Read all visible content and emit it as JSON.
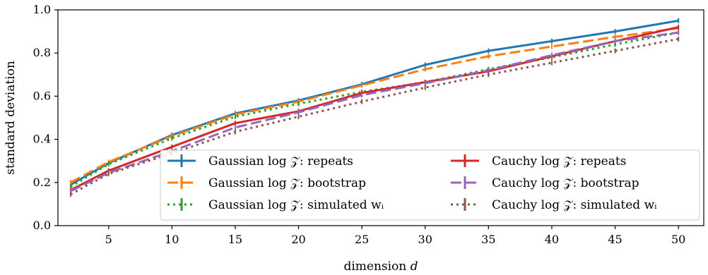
{
  "chart_data": {
    "type": "line",
    "title": "",
    "xlabel": "dimension d",
    "ylabel": "standard deviation",
    "xlim": [
      1,
      52
    ],
    "ylim": [
      0.0,
      1.0
    ],
    "xticks": [
      5,
      10,
      15,
      20,
      25,
      30,
      35,
      40,
      45,
      50
    ],
    "yticks": [
      0.0,
      0.2,
      0.4,
      0.6,
      0.8,
      1.0
    ],
    "xtick_labels": [
      "5",
      "10",
      "15",
      "20",
      "25",
      "30",
      "35",
      "40",
      "45",
      "50"
    ],
    "ytick_labels": [
      "0.0",
      "0.2",
      "0.4",
      "0.6",
      "0.8",
      "1.0"
    ],
    "grid": false,
    "legend_position": "lower-right",
    "legend_columns": 2,
    "x": [
      2,
      5,
      10,
      15,
      20,
      25,
      30,
      35,
      40,
      45,
      50
    ],
    "series": [
      {
        "name": "Gaussian log 𝒵: repeats",
        "color": "#1f77b4",
        "dash": "solid",
        "values": [
          0.19,
          0.29,
          0.42,
          0.52,
          0.58,
          0.655,
          0.745,
          0.81,
          0.855,
          0.9,
          0.95
        ]
      },
      {
        "name": "Gaussian log 𝒵: bootstrap",
        "color": "#ff7f0e",
        "dash": "dashed",
        "values": [
          0.2,
          0.295,
          0.415,
          0.515,
          0.575,
          0.65,
          0.725,
          0.785,
          0.83,
          0.875,
          0.915
        ]
      },
      {
        "name": "Gaussian log 𝒵: simulated wᵢ",
        "color": "#2ca02c",
        "dash": "dotted",
        "values": [
          0.18,
          0.285,
          0.405,
          0.505,
          0.565,
          0.62,
          0.665,
          0.725,
          0.78,
          0.84,
          0.895
        ]
      },
      {
        "name": "Cauchy log 𝒵: repeats",
        "color": "#d62728",
        "dash": "solid",
        "values": [
          0.165,
          0.255,
          0.365,
          0.475,
          0.53,
          0.615,
          0.665,
          0.715,
          0.785,
          0.855,
          0.92
        ]
      },
      {
        "name": "Cauchy log 𝒵: bootstrap",
        "color": "#9467bd",
        "dash": "dashed",
        "values": [
          0.16,
          0.245,
          0.345,
          0.455,
          0.525,
          0.605,
          0.66,
          0.72,
          0.79,
          0.855,
          0.895
        ]
      },
      {
        "name": "Cauchy log 𝒵: simulated wᵢ",
        "color": "#8c564b",
        "dash": "dotted",
        "values": [
          0.145,
          0.24,
          0.335,
          0.435,
          0.505,
          0.575,
          0.64,
          0.7,
          0.755,
          0.81,
          0.865
        ]
      }
    ]
  }
}
